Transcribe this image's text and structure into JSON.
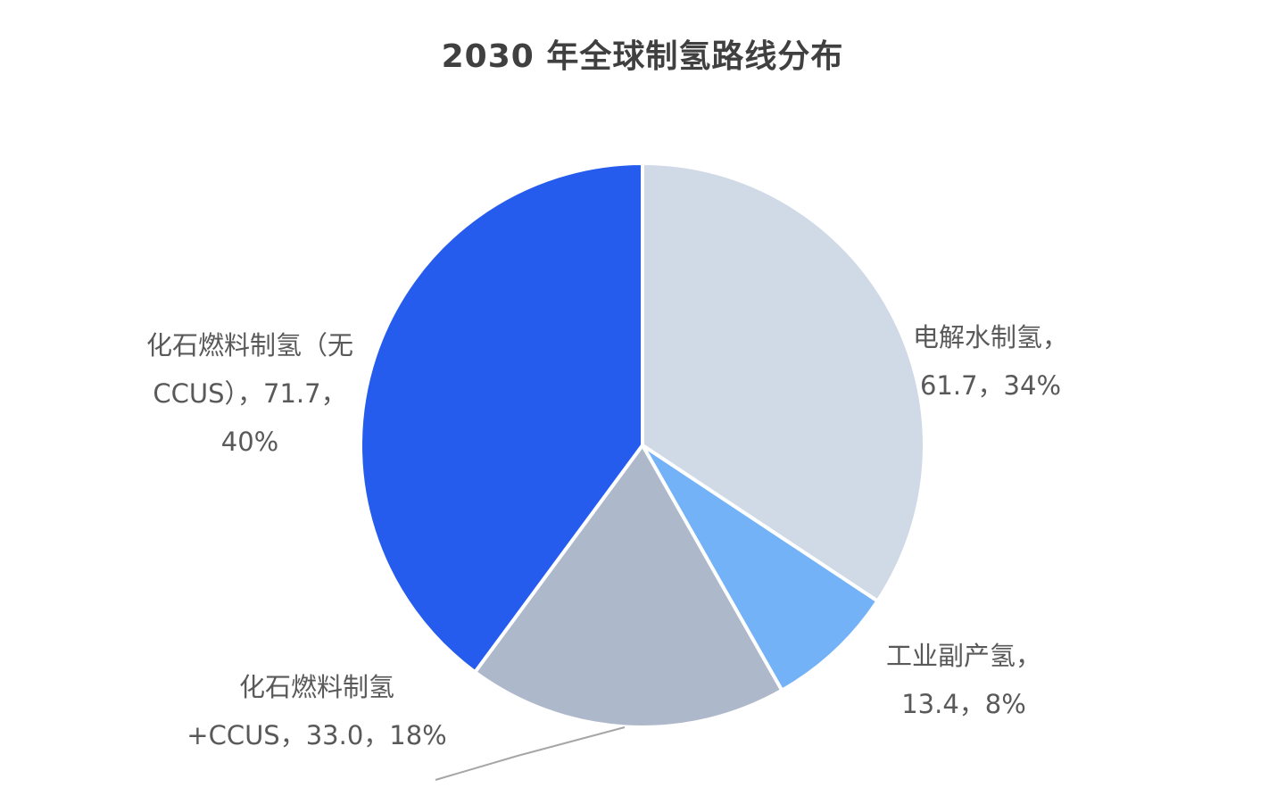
{
  "chart_data": {
    "type": "pie",
    "title": "2030 年全球制氢路线分布",
    "slices": [
      {
        "lines": [
          "电解水制氢，",
          "61.7，34%"
        ],
        "value": 61.7,
        "percent": 34,
        "color": "#D0D9E6"
      },
      {
        "lines": [
          "工业副产氢，",
          "13.4，8%"
        ],
        "value": 13.4,
        "percent": 8,
        "color": "#74B2F8"
      },
      {
        "lines": [
          "化石燃料制氢",
          "+CCUS，33.0，18%"
        ],
        "value": 33.0,
        "percent": 18,
        "color": "#ADB9CA"
      },
      {
        "lines": [
          "化石燃料制氢（无",
          "CCUS），71.7，",
          "40%"
        ],
        "value": 71.7,
        "percent": 40,
        "color": "#255CEE"
      }
    ],
    "start_angle": "12 o'clock",
    "direction": "clockwise",
    "legend": "none"
  }
}
